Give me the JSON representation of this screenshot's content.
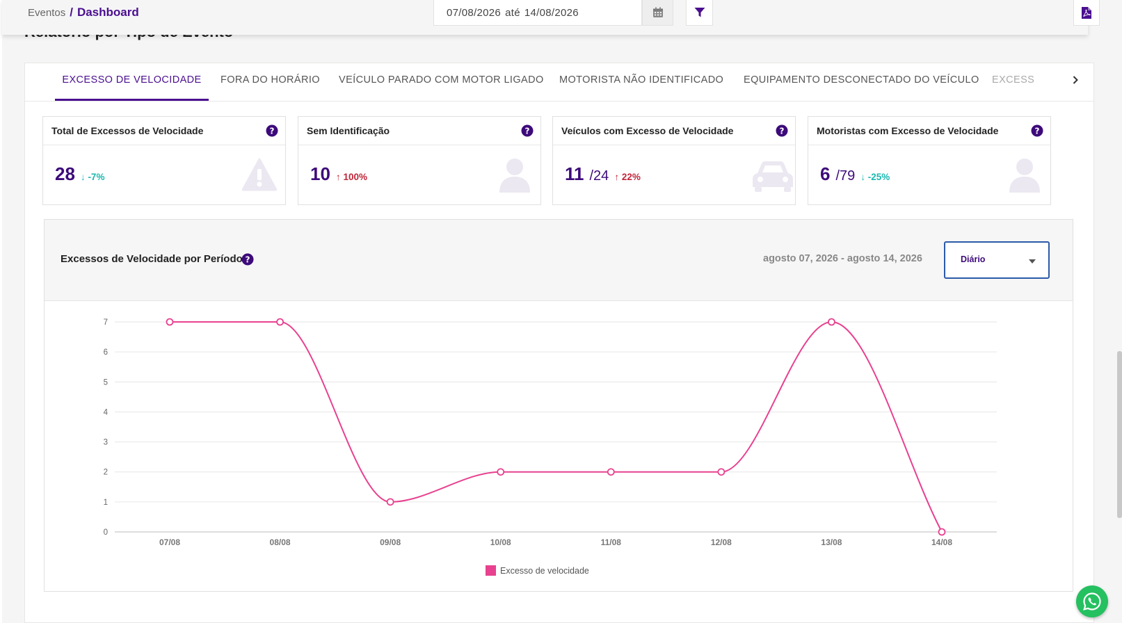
{
  "breadcrumb": {
    "parent": "Eventos",
    "separator": "/",
    "current": "Dashboard"
  },
  "date_filter": {
    "start": "07/08/2026",
    "between": "até",
    "end": "14/08/2026"
  },
  "section_title": "Relatório por Tipo de Evento",
  "tabs": [
    {
      "label": "EXCESSO DE VELOCIDADE",
      "active": true
    },
    {
      "label": "FORA DO HORÁRIO",
      "active": false
    },
    {
      "label": "VEÍCULO PARADO COM MOTOR LIGADO",
      "active": false
    },
    {
      "label": "MOTORISTA NÃO IDENTIFICADO",
      "active": false
    },
    {
      "label": "EQUIPAMENTO DESCONECTADO DO VEÍCULO",
      "active": false
    },
    {
      "label": "EXCESSO",
      "active": false
    }
  ],
  "cards": [
    {
      "title": "Total de Excessos de Velocidade",
      "value": "28",
      "total": "",
      "change": "-7%",
      "trend": "down",
      "icon": "warning-icon"
    },
    {
      "title": "Sem Identificação",
      "value": "10",
      "total": "",
      "change": "100%",
      "trend": "up",
      "icon": "user-icon"
    },
    {
      "title": "Veículos com Excesso de Velocidade",
      "value": "11",
      "total": "/24",
      "change": "22%",
      "trend": "up",
      "icon": "car-icon"
    },
    {
      "title": "Motoristas com Excesso de Velocidade",
      "value": "6",
      "total": "/79",
      "change": "-25%",
      "trend": "down",
      "icon": "user-icon"
    }
  ],
  "chart_panel": {
    "title": "Excessos de Velocidade por Período",
    "range": "agosto 07, 2026 - agosto 14, 2026",
    "granularity": "Diário"
  },
  "chart_data": {
    "type": "line",
    "categories": [
      "07/08",
      "08/08",
      "09/08",
      "10/08",
      "11/08",
      "12/08",
      "13/08",
      "14/08"
    ],
    "series": [
      {
        "name": "Excesso de velocidade",
        "values": [
          7,
          7,
          1,
          2,
          2,
          2,
          7,
          0
        ],
        "color": "#e8418f"
      }
    ],
    "ylim": [
      0,
      7
    ],
    "yticks": [
      0,
      1,
      2,
      3,
      4,
      5,
      6,
      7
    ],
    "grid": true,
    "legend": "bottom",
    "title": "",
    "xlabel": "",
    "ylabel": ""
  },
  "colors": {
    "brand": "#4a0e8f",
    "positive": "#19b8b0",
    "negative": "#c0263a",
    "line": "#e8418f",
    "whatsapp": "#25c060"
  }
}
